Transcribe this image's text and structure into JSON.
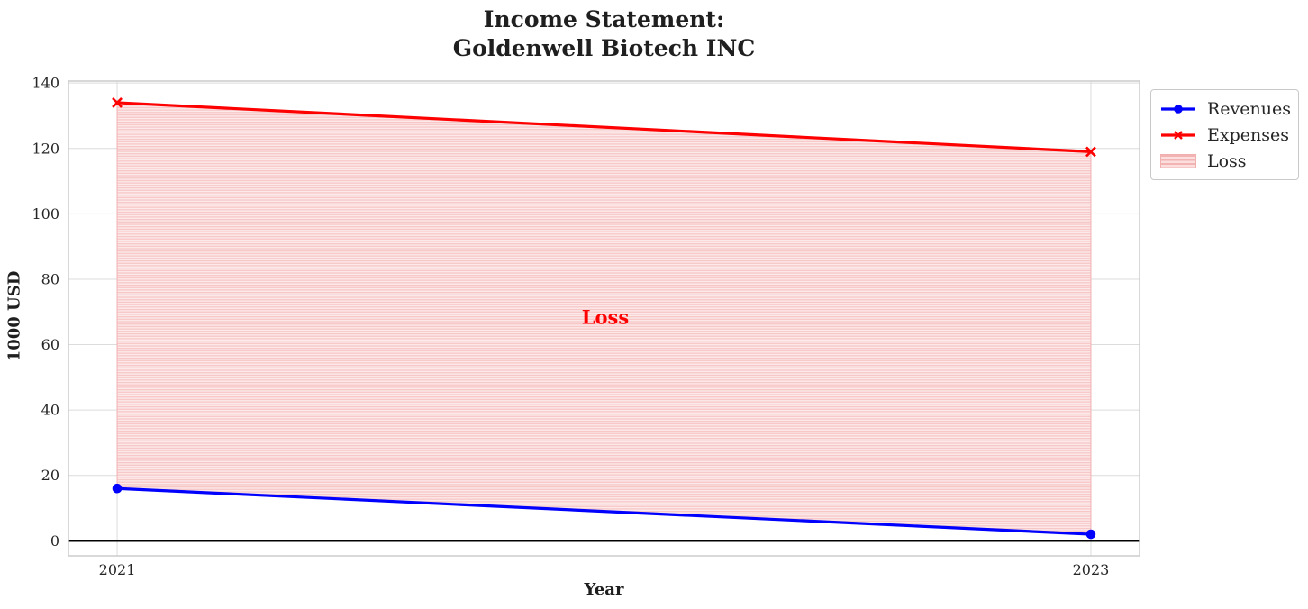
{
  "chart_data": {
    "type": "line",
    "title_line1": "Income Statement:",
    "title_line2": "Goldenwell Biotech INC",
    "xlabel": "Year",
    "ylabel": "1000 USD",
    "x": [
      2021,
      2023
    ],
    "series": [
      {
        "name": "Revenues",
        "color": "#0000ff",
        "marker": "circle",
        "values": [
          16,
          2
        ]
      },
      {
        "name": "Expenses",
        "color": "#ff0000",
        "marker": "x",
        "values": [
          134,
          119
        ]
      }
    ],
    "loss_area": {
      "label": "Loss",
      "between": [
        "Revenues",
        "Expenses"
      ],
      "hatch": "horizontal-lines",
      "fill_color": "#fce9e9",
      "hatch_color": "#f7c6c6",
      "edge_color": "#f2b2b2"
    },
    "annotation": {
      "text": "Loss",
      "x": 2022,
      "y": 68,
      "color": "#ff0000"
    },
    "zero_line": {
      "y": 0,
      "color": "#000000"
    },
    "xticks": [
      {
        "value": 2021,
        "label": "2021"
      },
      {
        "value": 2023,
        "label": "2023"
      }
    ],
    "yticks": [
      0,
      20,
      40,
      60,
      80,
      100,
      120,
      140
    ],
    "xlim": [
      2020.9,
      2023.1
    ],
    "ylim": [
      -4.6,
      140.6
    ],
    "grid": true,
    "grid_color": "#dcdcdc",
    "spine_color": "#cccccc",
    "text_color": "#262626",
    "legend": {
      "position": "outside-top-right",
      "entries": [
        "Revenues",
        "Expenses",
        "Loss"
      ]
    }
  }
}
